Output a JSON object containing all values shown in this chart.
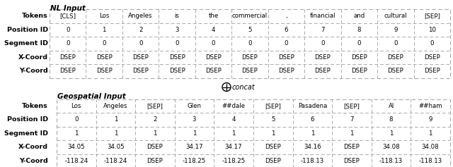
{
  "nl_title": "NL Input",
  "geo_title": "Geospatial Input",
  "concat_label": "concat",
  "nl_row_labels": [
    "Tokens",
    "Position ID",
    "Segment ID",
    "X-Coord",
    "Y-Coord"
  ],
  "nl_data": {
    "Tokens": [
      "[CLS]",
      "Los",
      "Angeles",
      "is",
      "the",
      "commercial",
      ",",
      "financial",
      "and",
      "cultural",
      "[SEP]"
    ],
    "Position ID": [
      "0",
      "1",
      "2",
      "3",
      "4",
      "5",
      "6",
      "7",
      "8",
      "9",
      "10"
    ],
    "Segment ID": [
      "0",
      "0",
      "0",
      "0",
      "0",
      "0",
      "0",
      "0",
      "0",
      "0",
      "0"
    ],
    "X-Coord": [
      "DSEP",
      "DSEP",
      "DSEP",
      "DSEP",
      "DSEP",
      "DSEP",
      "DSEP",
      "DSEP",
      "DSEP",
      "DSEP",
      "DSEP"
    ],
    "Y-Coord": [
      "DSEP",
      "DSEP",
      "DSEP",
      "DSEP",
      "DSEP",
      "DSEP",
      "DSEP",
      "DSEP",
      "DSEP",
      "DSEP",
      "DSEP"
    ]
  },
  "geo_row_labels": [
    "Tokens",
    "Position ID",
    "Segment ID",
    "X-Coord",
    "Y-Coord"
  ],
  "geo_data": {
    "Tokens": [
      "Los",
      "Angeles",
      "[SEP]",
      "Glen",
      "##dale",
      "[SEP]",
      "Pasadena",
      "[SEP]",
      "Al",
      "##ham"
    ],
    "Position ID": [
      "0",
      "1",
      "2",
      "3",
      "4",
      "5",
      "6",
      "7",
      "8",
      "9"
    ],
    "Segment ID": [
      "1",
      "1",
      "1",
      "1",
      "1",
      "1",
      "1",
      "1",
      "1",
      "1"
    ],
    "X-Coord": [
      "34.05",
      "34.05",
      "DSEP",
      "34.17",
      "34.17",
      "DSEP",
      "34.16",
      "DSEP",
      "34.08",
      "34.08"
    ],
    "Y-Coord": [
      "-118.24",
      "-118.24",
      "DSEP",
      "-118.25",
      "-118.25",
      "DSEP",
      "-118.13",
      "DSEP",
      "-118.13",
      "-118.13"
    ]
  },
  "background_color": "#ffffff",
  "border_color": "#999999",
  "text_color": "#000000"
}
